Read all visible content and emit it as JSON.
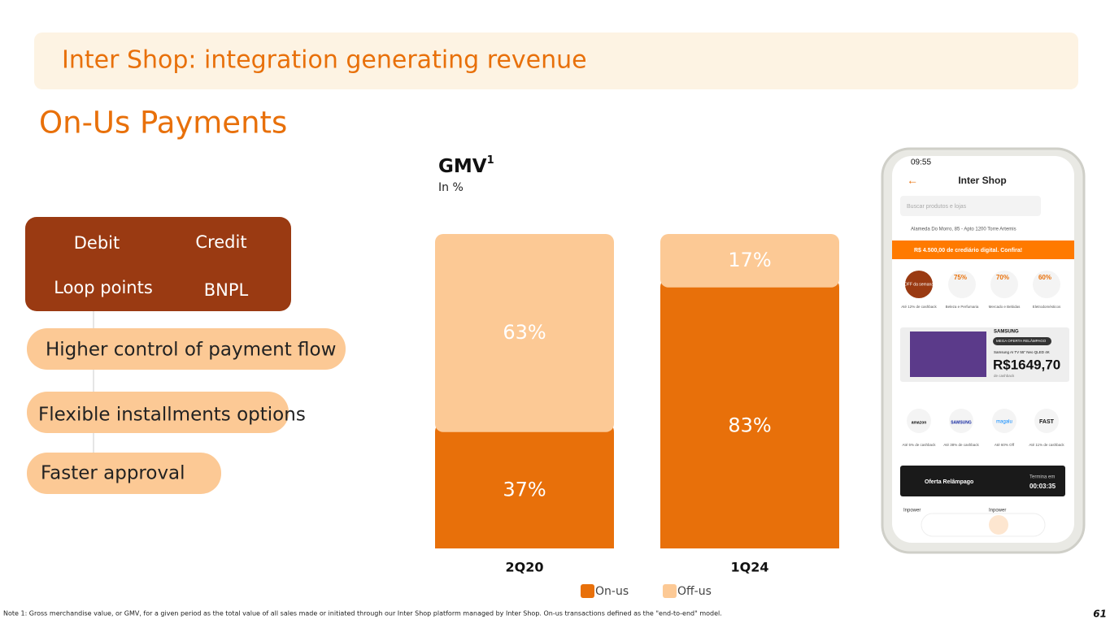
{
  "header": {
    "title": "Inter Shop: integration generating revenue",
    "subtitle": "On-Us Payments"
  },
  "methods": {
    "items": [
      "Debit",
      "Credit",
      "Loop points",
      "BNPL"
    ]
  },
  "benefits": [
    "Higher control of payment flow",
    "Flexible installments options",
    "Faster approval"
  ],
  "chart_data": {
    "type": "stacked_bar",
    "title": "GMV",
    "title_superscript": "1",
    "subtitle": "In %",
    "categories": [
      "2Q20",
      "1Q24"
    ],
    "ylim": [
      0,
      100
    ],
    "series": [
      {
        "name": "On-us",
        "color": "#e8700a",
        "values": [
          37,
          83
        ],
        "value_labels": [
          "37%",
          "83%"
        ]
      },
      {
        "name": "Off-us",
        "color": "#fcc995",
        "values": [
          63,
          17
        ],
        "value_labels": [
          "63%",
          "17%"
        ]
      }
    ],
    "legend": "bottom"
  },
  "phone": {
    "time": "09:55",
    "title": "Inter Shop",
    "search": "Buscar produtos e lojas",
    "address": "Alameda Do Morro, 85 - Apto 1200 Torre Artemis",
    "banner": "R$ 4.500,00 de crediário digital. Confira!",
    "badges": [
      "OFF da semana",
      "75%",
      "70%",
      "60%"
    ],
    "categories": [
      "Até 12% de cashback",
      "Beleza e Perfumaria",
      "Mercado e Bebidas",
      "Eletrodomésticos"
    ],
    "promo": {
      "brand": "SAMSUNG",
      "tag": "MEGA OFERTA RELÂMPAGO",
      "product": "Samsung AI TV 55\" Neo QLED 4K",
      "price": "R$1649,70",
      "note": "de cashback"
    },
    "stores": [
      "amazon",
      "SAMSUNG",
      "magalu",
      "FAST"
    ],
    "store_offers": [
      "Até 5% de cashback",
      "Até 38% de cashback",
      "Até 60% Off",
      "Até 11% de cashback"
    ],
    "flash": {
      "label": "Oferta Relâmpago",
      "ends": "Termina em",
      "timer": "00:03:35"
    },
    "cards": [
      "Inpower",
      "Inpower"
    ]
  },
  "footnote": "Note 1: Gross merchandise value, or GMV, for a given period as the total value of all sales made or initiated through our Inter Shop platform managed by Inter Shop.  On-us transactions defined as the \"end-to-end\" model.",
  "page_number": "61"
}
